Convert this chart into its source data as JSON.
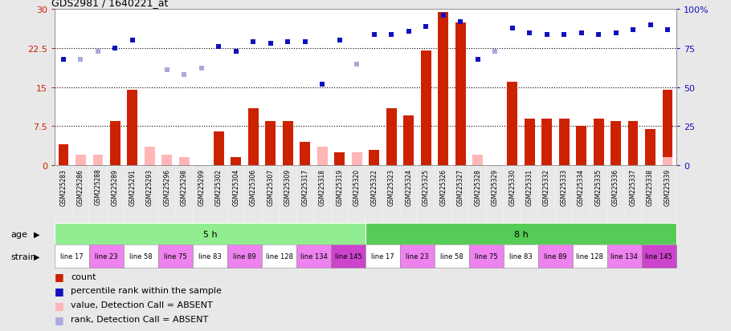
{
  "title": "GDS2981 / 1640221_at",
  "samples": [
    "GSM225283",
    "GSM225286",
    "GSM225288",
    "GSM225289",
    "GSM225291",
    "GSM225293",
    "GSM225296",
    "GSM225298",
    "GSM225299",
    "GSM225302",
    "GSM225304",
    "GSM225306",
    "GSM225307",
    "GSM225309",
    "GSM225317",
    "GSM225318",
    "GSM225319",
    "GSM225320",
    "GSM225322",
    "GSM225323",
    "GSM225324",
    "GSM225325",
    "GSM225326",
    "GSM225327",
    "GSM225328",
    "GSM225329",
    "GSM225330",
    "GSM225331",
    "GSM225332",
    "GSM225333",
    "GSM225334",
    "GSM225335",
    "GSM225336",
    "GSM225337",
    "GSM225338",
    "GSM225339"
  ],
  "count_values": [
    4.0,
    null,
    null,
    8.5,
    14.5,
    null,
    null,
    null,
    null,
    6.5,
    1.5,
    11.0,
    8.5,
    8.5,
    4.5,
    null,
    2.5,
    null,
    3.0,
    11.0,
    9.5,
    22.0,
    29.5,
    27.5,
    null,
    null,
    16.0,
    9.0,
    9.0,
    9.0,
    7.5,
    9.0,
    8.5,
    8.5,
    7.0,
    14.5
  ],
  "absent_count_values": [
    null,
    2.0,
    2.0,
    null,
    null,
    3.5,
    2.0,
    1.5,
    null,
    null,
    null,
    null,
    null,
    null,
    null,
    3.5,
    null,
    2.5,
    null,
    null,
    null,
    null,
    null,
    null,
    2.0,
    null,
    null,
    null,
    null,
    null,
    null,
    null,
    null,
    null,
    null,
    1.5
  ],
  "percentile_rank": [
    68,
    null,
    null,
    75,
    80,
    null,
    null,
    null,
    null,
    76,
    73,
    79,
    78,
    79,
    79,
    52,
    80,
    null,
    84,
    84,
    86,
    89,
    96,
    92,
    68,
    null,
    88,
    85,
    84,
    84,
    85,
    84,
    85,
    87,
    90,
    87
  ],
  "absent_rank": [
    null,
    68,
    73,
    null,
    null,
    null,
    61,
    58,
    62,
    null,
    null,
    null,
    null,
    null,
    null,
    null,
    null,
    65,
    null,
    null,
    null,
    null,
    null,
    null,
    null,
    73,
    null,
    null,
    null,
    null,
    null,
    null,
    null,
    null,
    null,
    null
  ],
  "age_groups": [
    {
      "label": "5 h",
      "start": 0,
      "end": 18,
      "color": "#90ee90"
    },
    {
      "label": "8 h",
      "start": 18,
      "end": 36,
      "color": "#55cc55"
    }
  ],
  "strain_labels": [
    {
      "label": "line 17",
      "start": 0,
      "end": 2,
      "color": "#ffffff"
    },
    {
      "label": "line 23",
      "start": 2,
      "end": 4,
      "color": "#ee82ee"
    },
    {
      "label": "line 58",
      "start": 4,
      "end": 6,
      "color": "#ffffff"
    },
    {
      "label": "line 75",
      "start": 6,
      "end": 8,
      "color": "#ee82ee"
    },
    {
      "label": "line 83",
      "start": 8,
      "end": 10,
      "color": "#ffffff"
    },
    {
      "label": "line 89",
      "start": 10,
      "end": 12,
      "color": "#ee82ee"
    },
    {
      "label": "line 128",
      "start": 12,
      "end": 14,
      "color": "#ffffff"
    },
    {
      "label": "line 134",
      "start": 14,
      "end": 16,
      "color": "#ee82ee"
    },
    {
      "label": "line 145",
      "start": 16,
      "end": 18,
      "color": "#cc44cc"
    },
    {
      "label": "line 17",
      "start": 18,
      "end": 20,
      "color": "#ffffff"
    },
    {
      "label": "line 23",
      "start": 20,
      "end": 22,
      "color": "#ee82ee"
    },
    {
      "label": "line 58",
      "start": 22,
      "end": 24,
      "color": "#ffffff"
    },
    {
      "label": "line 75",
      "start": 24,
      "end": 26,
      "color": "#ee82ee"
    },
    {
      "label": "line 83",
      "start": 26,
      "end": 28,
      "color": "#ffffff"
    },
    {
      "label": "line 89",
      "start": 28,
      "end": 30,
      "color": "#ee82ee"
    },
    {
      "label": "line 128",
      "start": 30,
      "end": 32,
      "color": "#ffffff"
    },
    {
      "label": "line 134",
      "start": 32,
      "end": 34,
      "color": "#ee82ee"
    },
    {
      "label": "line 145",
      "start": 34,
      "end": 36,
      "color": "#cc44cc"
    }
  ],
  "left_ylim": [
    0,
    30
  ],
  "right_ylim": [
    0,
    100
  ],
  "left_yticks": [
    0,
    7.5,
    15,
    22.5,
    30
  ],
  "right_yticks": [
    0,
    25,
    50,
    75,
    100
  ],
  "bar_color": "#cc2200",
  "absent_bar_color": "#ffb6b6",
  "rank_color": "#1111bb",
  "absent_rank_color": "#aaaadd",
  "bg_color": "#e8e8e8",
  "plot_bg": "#ffffff",
  "xtick_bg": "#cccccc",
  "legend_items": [
    {
      "color": "#cc2200",
      "label": "count"
    },
    {
      "color": "#1111bb",
      "label": "percentile rank within the sample"
    },
    {
      "color": "#ffb6b6",
      "label": "value, Detection Call = ABSENT"
    },
    {
      "color": "#aaaadd",
      "label": "rank, Detection Call = ABSENT"
    }
  ]
}
